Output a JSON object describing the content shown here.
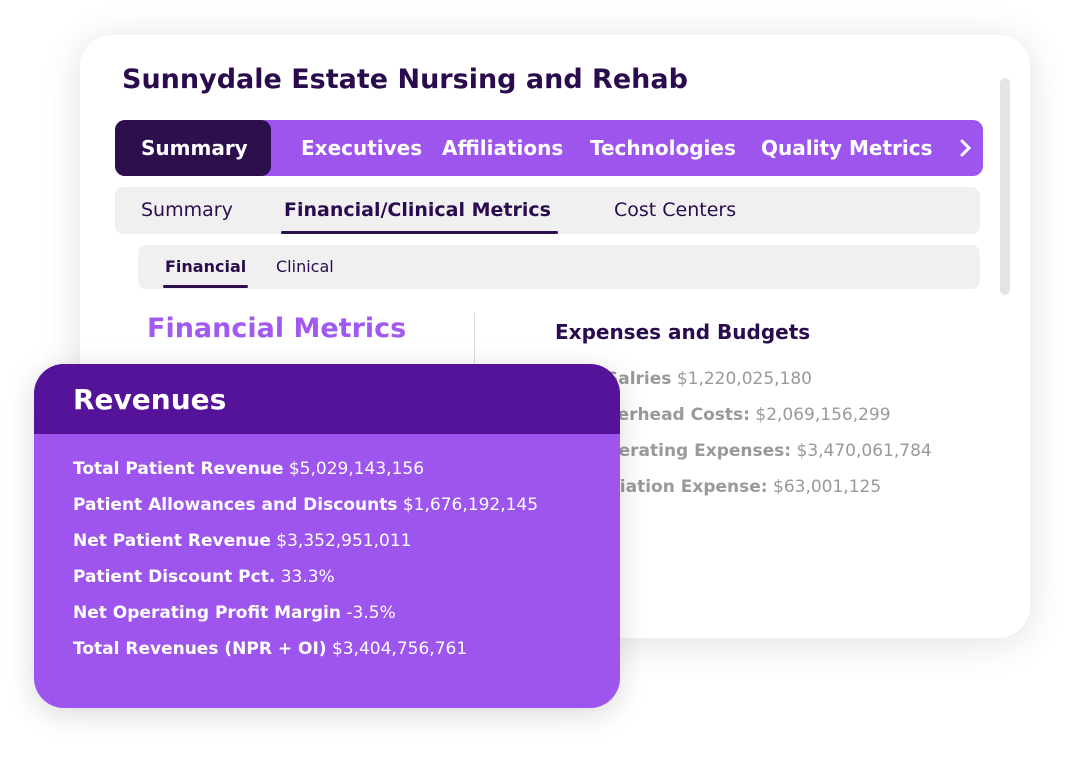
{
  "header": {
    "title": "Sunnydale Estate Nursing and Rehab"
  },
  "tabs": [
    "Summary",
    "Executives",
    "Affiliations",
    "Technologies",
    "Quality Metrics"
  ],
  "subtabs": [
    "Summary",
    "Financial/Clinical Metrics",
    "Cost Centers"
  ],
  "subsubtabs": [
    "Financial",
    "Clinical"
  ],
  "section": {
    "title": "Financial Metrics"
  },
  "expenses": {
    "title": "Expenses and Budgets",
    "rows": [
      {
        "label": "Salries",
        "value": "$1,220,025,180"
      },
      {
        "label": "Overhead Costs:",
        "value": "$2,069,156,299"
      },
      {
        "label": "Operating Expenses:",
        "value": "$3,470,061,784"
      },
      {
        "label": "Depreciation Expense:",
        "value": "$63,001,125"
      }
    ]
  },
  "revenues": {
    "title": "Revenues",
    "rows": [
      {
        "label": "Total Patient Revenue",
        "value": "$5,029,143,156"
      },
      {
        "label": "Patient Allowances and Discounts",
        "value": "$1,676,192,145"
      },
      {
        "label": "Net Patient Revenue",
        "value": "$3,352,951,011"
      },
      {
        "label": "Patient Discount Pct.",
        "value": "33.3%"
      },
      {
        "label": "Net Operating Profit Margin",
        "value": "-3.5%"
      },
      {
        "label": "Total Revenues (NPR + OI)",
        "value": "$3,404,756,761"
      }
    ]
  }
}
